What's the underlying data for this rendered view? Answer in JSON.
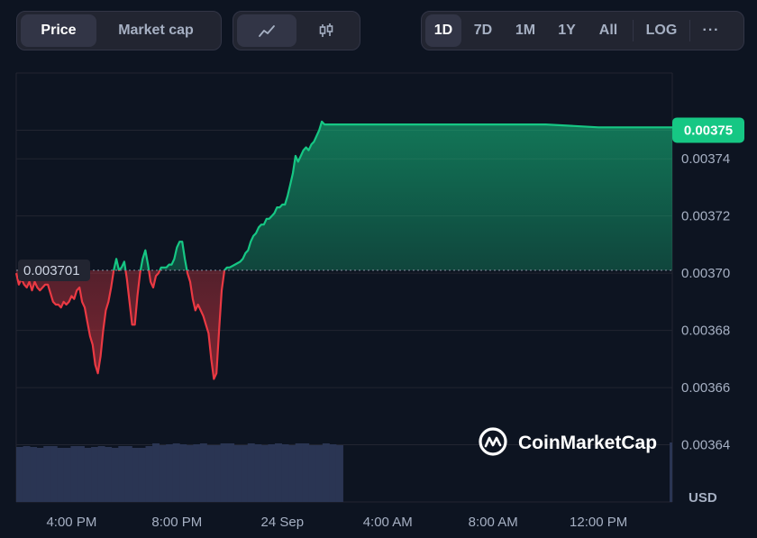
{
  "tabs": {
    "price": "Price",
    "market_cap": "Market cap"
  },
  "chart_type_icons": {
    "line": "line-chart-icon",
    "candle": "candlestick-icon"
  },
  "ranges": [
    "1D",
    "7D",
    "1M",
    "1Y",
    "All"
  ],
  "log_label": "LOG",
  "more_label": "···",
  "watermark": "CoinMarketCap",
  "currency": "USD",
  "colors": {
    "up": "#16c784",
    "down": "#ea3943",
    "background": "#0d1421",
    "grid": "#222531"
  },
  "chart_data": {
    "type": "line",
    "reference_value": 0.003701,
    "reference_label": "0.003701",
    "current_value": 0.00375,
    "current_label": "0.00375",
    "y_ticks": [
      "0.00374",
      "0.00372",
      "0.00370",
      "0.00368",
      "0.00366",
      "0.00364"
    ],
    "y_tick_values": [
      0.00374,
      0.00372,
      0.0037,
      0.00368,
      0.00366,
      0.00364
    ],
    "ylim": [
      0.00362,
      0.00377
    ],
    "x_ticks": [
      "4:00 PM",
      "8:00 PM",
      "24 Sep",
      "4:00 AM",
      "8:00 AM",
      "12:00 PM"
    ],
    "x_tick_hours": [
      16,
      20,
      24,
      28,
      32,
      36
    ],
    "xlim": [
      13.9,
      38.8
    ],
    "x_unit": "hour",
    "series": [
      {
        "values": [
          [
            13.9,
            0.0037
          ],
          [
            14.0,
            0.003696
          ],
          [
            14.1,
            0.003698
          ],
          [
            14.2,
            0.003696
          ],
          [
            14.3,
            0.003695
          ],
          [
            14.4,
            0.003697
          ],
          [
            14.5,
            0.003694
          ],
          [
            14.6,
            0.003697
          ],
          [
            14.7,
            0.003695
          ],
          [
            14.8,
            0.003694
          ],
          [
            15.0,
            0.003696
          ],
          [
            15.1,
            0.003696
          ],
          [
            15.2,
            0.003693
          ],
          [
            15.3,
            0.00369
          ],
          [
            15.4,
            0.003689
          ],
          [
            15.5,
            0.003689
          ],
          [
            15.6,
            0.003688
          ],
          [
            15.7,
            0.00369
          ],
          [
            15.8,
            0.003689
          ],
          [
            15.9,
            0.00369
          ],
          [
            16.0,
            0.003692
          ],
          [
            16.1,
            0.003691
          ],
          [
            16.2,
            0.003694
          ],
          [
            16.3,
            0.003695
          ],
          [
            16.4,
            0.00369
          ],
          [
            16.5,
            0.003688
          ],
          [
            16.6,
            0.003683
          ],
          [
            16.7,
            0.003678
          ],
          [
            16.8,
            0.003675
          ],
          [
            16.9,
            0.003668
          ],
          [
            17.0,
            0.003665
          ],
          [
            17.1,
            0.003671
          ],
          [
            17.2,
            0.00368
          ],
          [
            17.3,
            0.003687
          ],
          [
            17.4,
            0.00369
          ],
          [
            17.5,
            0.003695
          ],
          [
            17.6,
            0.003701
          ],
          [
            17.7,
            0.003705
          ],
          [
            17.8,
            0.003701
          ],
          [
            17.9,
            0.003702
          ],
          [
            18.0,
            0.003704
          ],
          [
            18.1,
            0.003698
          ],
          [
            18.2,
            0.00369
          ],
          [
            18.3,
            0.003682
          ],
          [
            18.4,
            0.003682
          ],
          [
            18.5,
            0.003692
          ],
          [
            18.6,
            0.0037
          ],
          [
            18.7,
            0.003705
          ],
          [
            18.8,
            0.003708
          ],
          [
            18.9,
            0.003703
          ],
          [
            19.0,
            0.003697
          ],
          [
            19.1,
            0.003695
          ],
          [
            19.2,
            0.003699
          ],
          [
            19.3,
            0.0037
          ],
          [
            19.4,
            0.003702
          ],
          [
            19.5,
            0.003702
          ],
          [
            19.6,
            0.003702
          ],
          [
            19.7,
            0.003703
          ],
          [
            19.8,
            0.003703
          ],
          [
            19.9,
            0.003705
          ],
          [
            20.0,
            0.003709
          ],
          [
            20.1,
            0.003711
          ],
          [
            20.2,
            0.003711
          ],
          [
            20.3,
            0.003705
          ],
          [
            20.4,
            0.0037
          ],
          [
            20.5,
            0.003697
          ],
          [
            20.6,
            0.003691
          ],
          [
            20.7,
            0.003687
          ],
          [
            20.8,
            0.003689
          ],
          [
            20.9,
            0.003687
          ],
          [
            21.0,
            0.003685
          ],
          [
            21.1,
            0.003682
          ],
          [
            21.2,
            0.003679
          ],
          [
            21.3,
            0.00367
          ],
          [
            21.4,
            0.003663
          ],
          [
            21.5,
            0.003665
          ],
          [
            21.6,
            0.00368
          ],
          [
            21.7,
            0.003694
          ],
          [
            21.8,
            0.003701
          ],
          [
            21.9,
            0.003702
          ],
          [
            22.0,
            0.003702
          ],
          [
            22.2,
            0.003703
          ],
          [
            22.4,
            0.003704
          ],
          [
            22.5,
            0.003705
          ],
          [
            22.6,
            0.003707
          ],
          [
            22.7,
            0.003708
          ],
          [
            22.8,
            0.003711
          ],
          [
            22.9,
            0.003713
          ],
          [
            23.0,
            0.003714
          ],
          [
            23.1,
            0.003716
          ],
          [
            23.2,
            0.003717
          ],
          [
            23.3,
            0.003717
          ],
          [
            23.4,
            0.003719
          ],
          [
            23.5,
            0.003719
          ],
          [
            23.6,
            0.00372
          ],
          [
            23.7,
            0.003721
          ],
          [
            23.8,
            0.003723
          ],
          [
            23.9,
            0.003723
          ],
          [
            24.0,
            0.003724
          ],
          [
            24.1,
            0.003724
          ],
          [
            24.2,
            0.003727
          ],
          [
            24.3,
            0.003731
          ],
          [
            24.4,
            0.003735
          ],
          [
            24.5,
            0.003741
          ],
          [
            24.6,
            0.003739
          ],
          [
            24.7,
            0.003741
          ],
          [
            24.8,
            0.003743
          ],
          [
            24.9,
            0.003744
          ],
          [
            25.0,
            0.003743
          ],
          [
            25.1,
            0.003745
          ],
          [
            25.2,
            0.003746
          ],
          [
            25.3,
            0.003748
          ],
          [
            25.4,
            0.00375
          ],
          [
            25.5,
            0.003753
          ],
          [
            25.6,
            0.003752
          ],
          [
            26.0,
            0.003752
          ],
          [
            27.0,
            0.003752
          ],
          [
            28.0,
            0.003752
          ],
          [
            30.0,
            0.003752
          ],
          [
            32.0,
            0.003752
          ],
          [
            34.0,
            0.003752
          ],
          [
            36.0,
            0.003751
          ],
          [
            38.0,
            0.003751
          ],
          [
            38.8,
            0.003751
          ]
        ]
      }
    ],
    "volume_bars_end_hour": 26.3
  }
}
